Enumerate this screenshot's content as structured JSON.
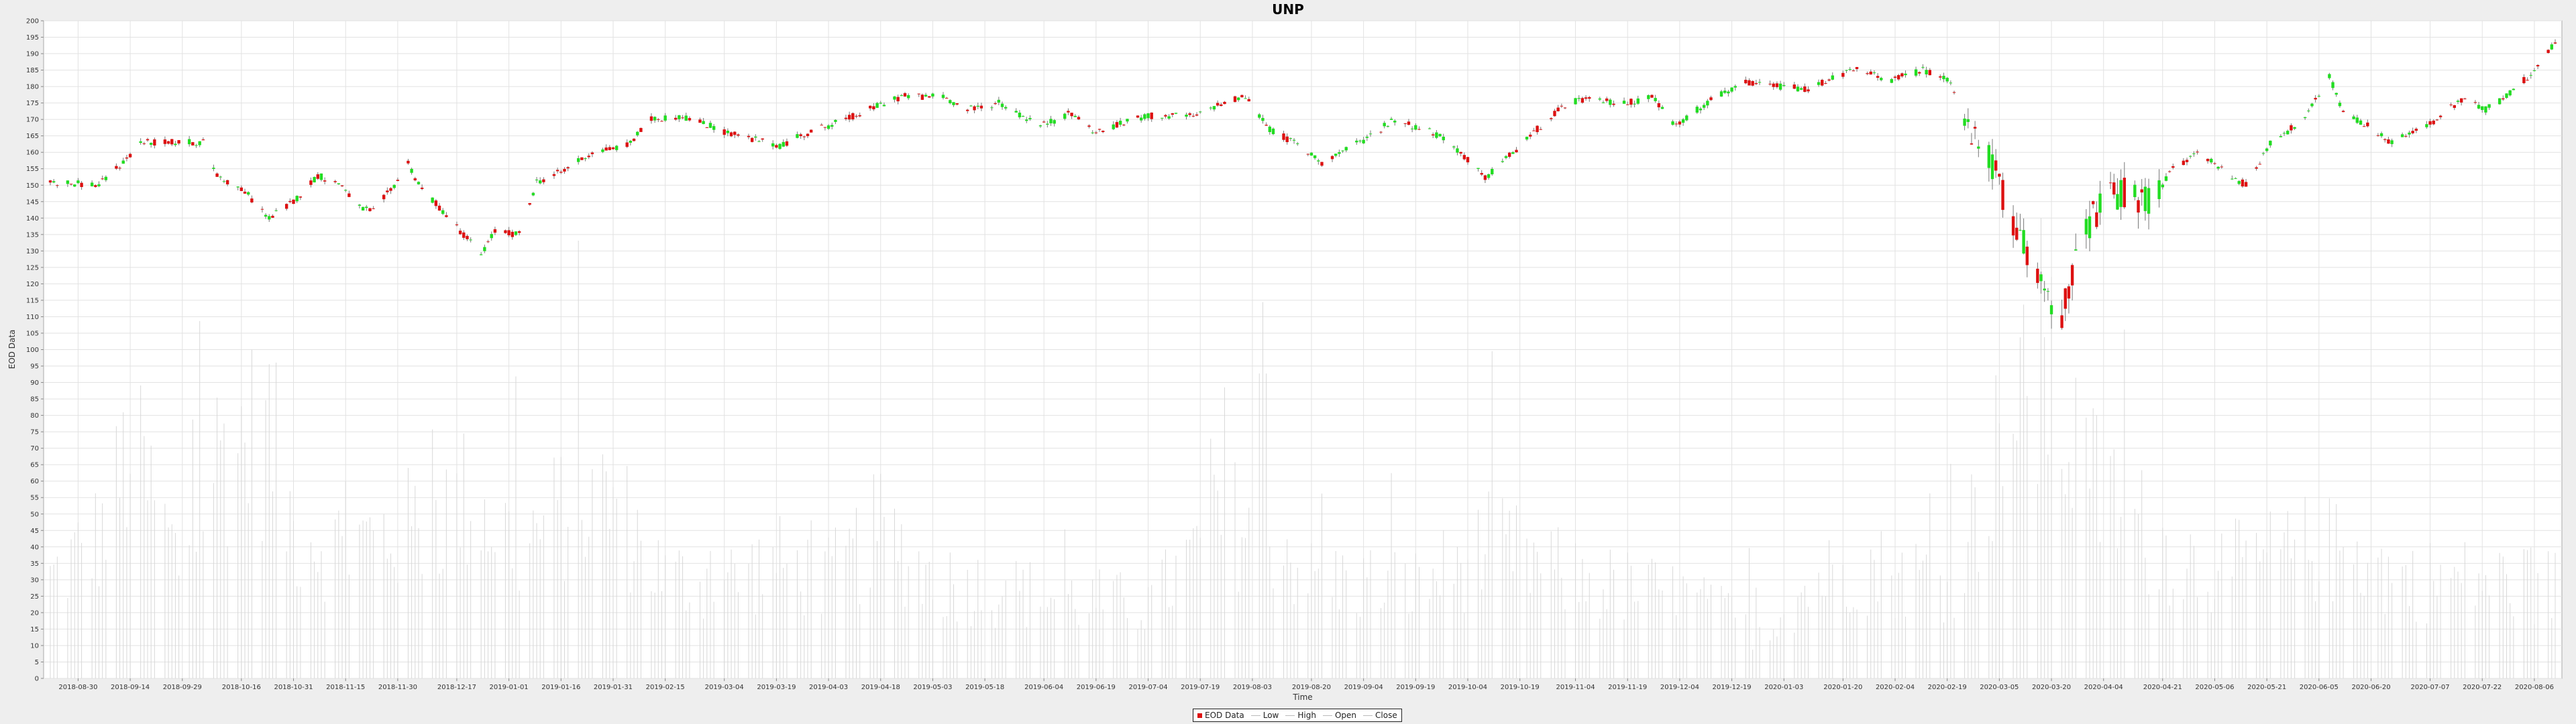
{
  "chart_data": {
    "type": "candlestick",
    "title": "UNP",
    "xlabel": "Time",
    "ylabel": "EOD Data",
    "ylim": [
      0,
      200
    ],
    "y_ticks": [
      0,
      5,
      10,
      15,
      20,
      25,
      30,
      35,
      40,
      45,
      50,
      55,
      60,
      65,
      70,
      75,
      80,
      85,
      90,
      95,
      100,
      105,
      110,
      115,
      120,
      125,
      130,
      135,
      140,
      145,
      150,
      155,
      160,
      165,
      170,
      175,
      180,
      185,
      190,
      195,
      200
    ],
    "x_range": [
      "2018-08-22",
      "2020-08-12"
    ],
    "x_ticks": [
      "2018-08-30",
      "2018-09-14",
      "2018-09-29",
      "2018-10-16",
      "2018-10-31",
      "2018-11-15",
      "2018-11-30",
      "2018-12-17",
      "2019-01-01",
      "2019-01-16",
      "2019-01-31",
      "2019-02-15",
      "2019-03-04",
      "2019-03-19",
      "2019-04-03",
      "2019-04-18",
      "2019-05-03",
      "2019-05-18",
      "2019-06-04",
      "2019-06-19",
      "2019-07-04",
      "2019-07-19",
      "2019-08-03",
      "2019-08-20",
      "2019-09-04",
      "2019-09-19",
      "2019-10-04",
      "2019-10-19",
      "2019-11-04",
      "2019-11-19",
      "2019-12-04",
      "2019-12-19",
      "2020-01-03",
      "2020-01-20",
      "2020-02-04",
      "2020-02-19",
      "2020-03-05",
      "2020-03-20",
      "2020-04-04",
      "2020-04-21",
      "2020-05-06",
      "2020-05-21",
      "2020-06-05",
      "2020-06-20",
      "2020-07-07",
      "2020-07-22",
      "2020-08-06"
    ],
    "grid": true,
    "legend_position": "bottom-center",
    "legend": [
      "EOD Data",
      "Low",
      "High",
      "Open",
      "Close"
    ],
    "colors": {
      "up": "#22dd22",
      "down": "#dd1111",
      "volume": "#d8d8d8",
      "grid": "#e2e2e2"
    },
    "price_anchors": [
      [
        "2018-08-22",
        151
      ],
      [
        "2018-09-05",
        150
      ],
      [
        "2018-09-12",
        157
      ],
      [
        "2018-09-17",
        163
      ],
      [
        "2018-09-28",
        163
      ],
      [
        "2018-10-05",
        163
      ],
      [
        "2018-10-09",
        153
      ],
      [
        "2018-10-17",
        148
      ],
      [
        "2018-10-24",
        140
      ],
      [
        "2018-10-31",
        145
      ],
      [
        "2018-11-07",
        153
      ],
      [
        "2018-11-14",
        150
      ],
      [
        "2018-11-19",
        143
      ],
      [
        "2018-11-23",
        142
      ],
      [
        "2018-11-29",
        150
      ],
      [
        "2018-12-03",
        157
      ],
      [
        "2018-12-06",
        150
      ],
      [
        "2018-12-14",
        141
      ],
      [
        "2018-12-24",
        129
      ],
      [
        "2018-12-28",
        136
      ],
      [
        "2019-01-04",
        135
      ],
      [
        "2019-01-09",
        151
      ],
      [
        "2019-01-16",
        154
      ],
      [
        "2019-01-25",
        160
      ],
      [
        "2019-02-04",
        162
      ],
      [
        "2019-02-11",
        170
      ],
      [
        "2019-02-20",
        171
      ],
      [
        "2019-03-05",
        166
      ],
      [
        "2019-03-12",
        164
      ],
      [
        "2019-03-20",
        162
      ],
      [
        "2019-03-28",
        166
      ],
      [
        "2019-04-08",
        170
      ],
      [
        "2019-04-17",
        174
      ],
      [
        "2019-04-24",
        177
      ],
      [
        "2019-05-06",
        177
      ],
      [
        "2019-05-13",
        173
      ],
      [
        "2019-05-22",
        175
      ],
      [
        "2019-06-03",
        168
      ],
      [
        "2019-06-12",
        172
      ],
      [
        "2019-06-19",
        166
      ],
      [
        "2019-07-03",
        171
      ],
      [
        "2019-07-18",
        171
      ],
      [
        "2019-07-25",
        175
      ],
      [
        "2019-08-01",
        177
      ],
      [
        "2019-08-08",
        167
      ],
      [
        "2019-08-15",
        163
      ],
      [
        "2019-08-23",
        157
      ],
      [
        "2019-09-03",
        163
      ],
      [
        "2019-09-13",
        170
      ],
      [
        "2019-09-24",
        166
      ],
      [
        "2019-10-02",
        160
      ],
      [
        "2019-10-09",
        152
      ],
      [
        "2019-10-21",
        164
      ],
      [
        "2019-10-29",
        172
      ],
      [
        "2019-11-05",
        176
      ],
      [
        "2019-11-19",
        175
      ],
      [
        "2019-11-26",
        177
      ],
      [
        "2019-12-03",
        168
      ],
      [
        "2019-12-13",
        176
      ],
      [
        "2019-12-23",
        181
      ],
      [
        "2020-01-03",
        180
      ],
      [
        "2020-01-10",
        179
      ],
      [
        "2020-01-17",
        183
      ],
      [
        "2020-01-24",
        185
      ],
      [
        "2020-02-03",
        182
      ],
      [
        "2020-02-12",
        185
      ],
      [
        "2020-02-20",
        182
      ],
      [
        "2020-02-25",
        165
      ],
      [
        "2020-03-03",
        157
      ],
      [
        "2020-03-09",
        137
      ],
      [
        "2020-03-18",
        120
      ],
      [
        "2020-03-23",
        110
      ],
      [
        "2020-03-30",
        138
      ],
      [
        "2020-04-08",
        148
      ],
      [
        "2020-04-17",
        144
      ],
      [
        "2020-04-24",
        155
      ],
      [
        "2020-05-01",
        160
      ],
      [
        "2020-05-08",
        155
      ],
      [
        "2020-05-15",
        150
      ],
      [
        "2020-05-22",
        163
      ],
      [
        "2020-06-01",
        170
      ],
      [
        "2020-06-08",
        183
      ],
      [
        "2020-06-12",
        172
      ],
      [
        "2020-06-19",
        168
      ],
      [
        "2020-06-26",
        163
      ],
      [
        "2020-07-06",
        168
      ],
      [
        "2020-07-16",
        176
      ],
      [
        "2020-07-23",
        173
      ],
      [
        "2020-07-29",
        177
      ],
      [
        "2020-08-04",
        183
      ],
      [
        "2020-08-12",
        193
      ]
    ],
    "volume_anchors": [
      [
        "2018-08-22",
        30
      ],
      [
        "2018-09-07",
        45
      ],
      [
        "2018-09-14",
        70
      ],
      [
        "2018-09-28",
        35
      ],
      [
        "2018-10-10",
        70
      ],
      [
        "2018-10-24",
        75
      ],
      [
        "2018-10-31",
        45
      ],
      [
        "2018-11-14",
        40
      ],
      [
        "2018-12-03",
        45
      ],
      [
        "2018-12-21",
        55
      ],
      [
        "2019-01-04",
        40
      ],
      [
        "2019-01-16",
        50
      ],
      [
        "2019-01-30",
        55
      ],
      [
        "2019-02-15",
        30
      ],
      [
        "2019-03-04",
        30
      ],
      [
        "2019-03-19",
        35
      ],
      [
        "2019-04-03",
        30
      ],
      [
        "2019-04-18",
        45
      ],
      [
        "2019-05-03",
        30
      ],
      [
        "2019-06-04",
        25
      ],
      [
        "2019-07-04",
        22
      ],
      [
        "2019-07-24",
        45
      ],
      [
        "2019-08-05",
        50
      ],
      [
        "2019-08-20",
        30
      ],
      [
        "2019-09-19",
        28
      ],
      [
        "2019-10-11",
        40
      ],
      [
        "2019-11-04",
        30
      ],
      [
        "2019-12-04",
        25
      ],
      [
        "2019-12-27",
        15
      ],
      [
        "2020-01-10",
        28
      ],
      [
        "2020-01-23",
        35
      ],
      [
        "2020-02-04",
        32
      ],
      [
        "2020-02-20",
        30
      ],
      [
        "2020-03-05",
        70
      ],
      [
        "2020-03-18",
        90
      ],
      [
        "2020-03-31",
        60
      ],
      [
        "2020-04-21",
        40
      ],
      [
        "2020-05-06",
        32
      ],
      [
        "2020-06-05",
        40
      ],
      [
        "2020-06-30",
        30
      ],
      [
        "2020-07-22",
        30
      ],
      [
        "2020-08-12",
        28
      ]
    ]
  }
}
